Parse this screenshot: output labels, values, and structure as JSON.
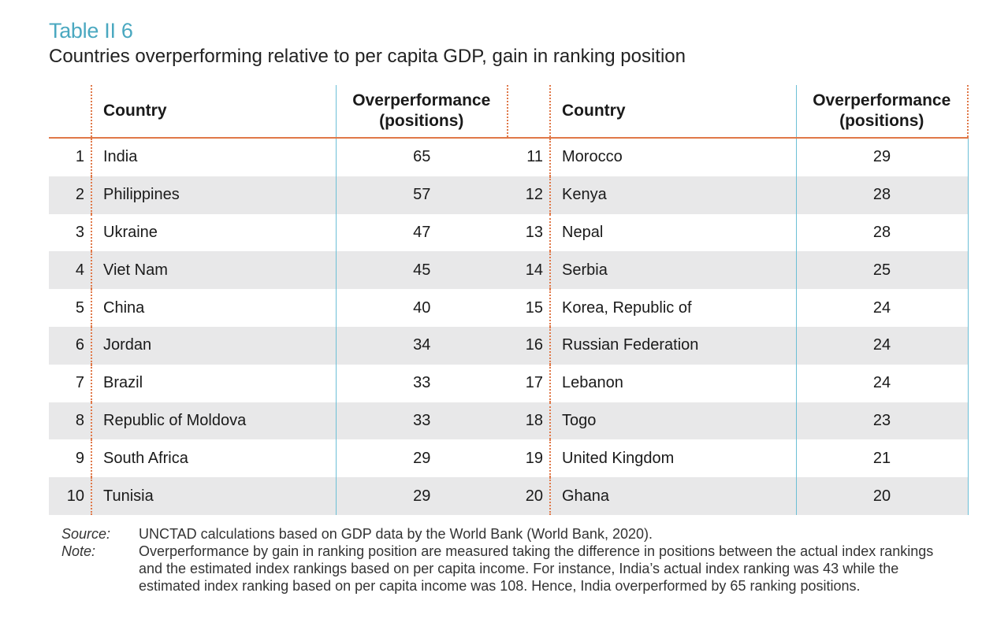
{
  "table_label": "Table II 6",
  "table_title": "Countries overperforming relative to per capita GDP, gain in ranking position",
  "headers": {
    "country": "Country",
    "overperformance": "Overperformance (positions)"
  },
  "left_rows": [
    {
      "rank": "1",
      "country": "India",
      "value": "65"
    },
    {
      "rank": "2",
      "country": "Philippines",
      "value": "57"
    },
    {
      "rank": "3",
      "country": "Ukraine",
      "value": "47"
    },
    {
      "rank": "4",
      "country": "Viet Nam",
      "value": "45"
    },
    {
      "rank": "5",
      "country": "China",
      "value": "40"
    },
    {
      "rank": "6",
      "country": "Jordan",
      "value": "34"
    },
    {
      "rank": "7",
      "country": "Brazil",
      "value": "33"
    },
    {
      "rank": "8",
      "country": "Republic of Moldova",
      "value": "33"
    },
    {
      "rank": "9",
      "country": "South Africa",
      "value": "29"
    },
    {
      "rank": "10",
      "country": "Tunisia",
      "value": "29"
    }
  ],
  "right_rows": [
    {
      "rank": "11",
      "country": "Morocco",
      "value": "29"
    },
    {
      "rank": "12",
      "country": "Kenya",
      "value": "28"
    },
    {
      "rank": "13",
      "country": "Nepal",
      "value": "28"
    },
    {
      "rank": "14",
      "country": "Serbia",
      "value": "25"
    },
    {
      "rank": "15",
      "country": "Korea, Republic of",
      "value": "24"
    },
    {
      "rank": "16",
      "country": "Russian Federation",
      "value": "24"
    },
    {
      "rank": "17",
      "country": "Lebanon",
      "value": "24"
    },
    {
      "rank": "18",
      "country": "Togo",
      "value": "23"
    },
    {
      "rank": "19",
      "country": "United Kingdom",
      "value": "21"
    },
    {
      "rank": "20",
      "country": "Ghana",
      "value": "20"
    }
  ],
  "source": {
    "label": "Source:",
    "text": "UNCTAD calculations based on GDP data by the World Bank (World Bank, 2020)."
  },
  "note": {
    "label": "Note:",
    "text": "Overperformance by gain in ranking position are measured taking the difference in positions between the actual index rankings and the estimated index rankings based on per capita income. For instance, India’s actual index ranking was 43 while the estimated index ranking based on per capita income was 108. Hence, India overperformed by 65 ranking positions."
  },
  "colors": {
    "label_blue": "#4aa8c0",
    "accent_orange": "#e07848",
    "divider_blue": "#6cbfd6",
    "stripe_gray": "#e8e8e9"
  }
}
